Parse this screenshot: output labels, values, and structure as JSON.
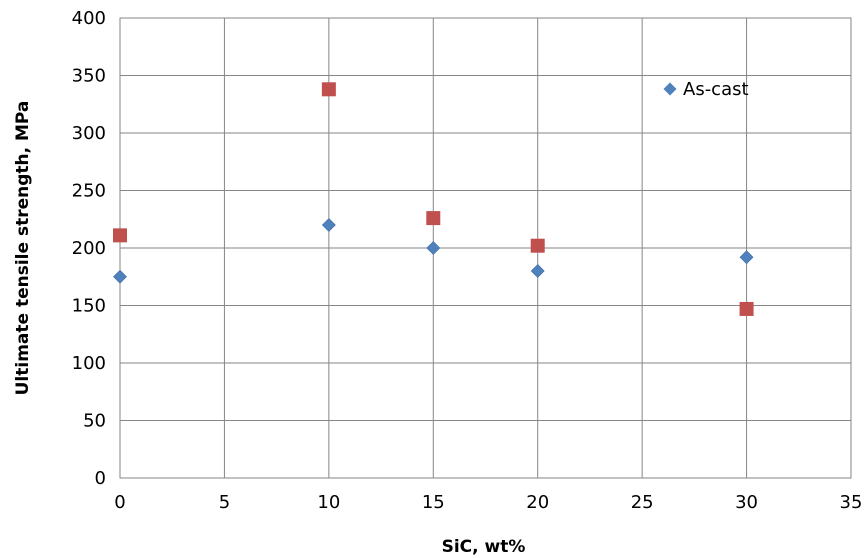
{
  "chart_data": {
    "type": "scatter",
    "title": "",
    "xlabel": "SiC, wt%",
    "ylabel": "Ultimate tensile strength, MPa",
    "xlim": [
      0,
      35
    ],
    "ylim": [
      0,
      400
    ],
    "xticks": [
      0,
      5,
      10,
      15,
      20,
      25,
      30,
      35
    ],
    "yticks": [
      0,
      50,
      100,
      150,
      200,
      250,
      300,
      350,
      400
    ],
    "grid": true,
    "legend_position": "top-right",
    "series": [
      {
        "name": "As-cast",
        "marker": "diamond",
        "color": "#4F81BD",
        "x": [
          0,
          10,
          15,
          20,
          30
        ],
        "y": [
          175,
          220,
          200,
          180,
          192
        ],
        "trendline": "polynomial",
        "trendline_color": "#000000"
      },
      {
        "marker": "square",
        "color": "#C0504D",
        "x": [
          0,
          10,
          15,
          20,
          30
        ],
        "y": [
          211,
          338,
          226,
          202,
          147
        ],
        "trendline": "polynomial",
        "trendline_color": "#000000"
      }
    ]
  }
}
